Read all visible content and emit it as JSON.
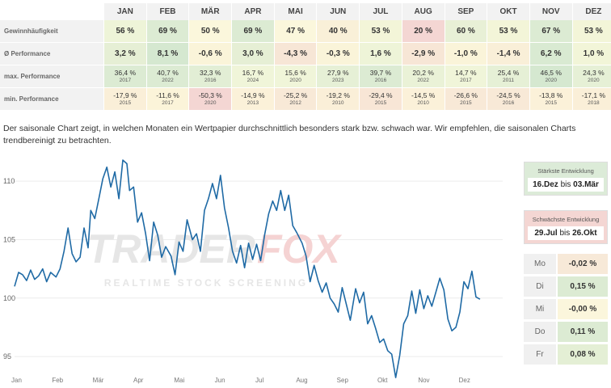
{
  "table": {
    "months": [
      "JAN",
      "FEB",
      "MÄR",
      "APR",
      "MAI",
      "JUN",
      "JUL",
      "AUG",
      "SEP",
      "OKT",
      "NOV",
      "DEZ"
    ],
    "rows": [
      {
        "label": "Gewinnhäufigkeit",
        "cells": [
          {
            "v": "56 %",
            "c": "#eef4d8"
          },
          {
            "v": "69 %",
            "c": "#dcebd3"
          },
          {
            "v": "50 %",
            "c": "#fbf7dc"
          },
          {
            "v": "69 %",
            "c": "#dcebd3"
          },
          {
            "v": "47 %",
            "c": "#fbf7dc"
          },
          {
            "v": "40 %",
            "c": "#f9f0d8"
          },
          {
            "v": "53 %",
            "c": "#f3f5d8"
          },
          {
            "v": "20 %",
            "c": "#f4d6d3"
          },
          {
            "v": "60 %",
            "c": "#e8f0d6"
          },
          {
            "v": "53 %",
            "c": "#f3f5d8"
          },
          {
            "v": "67 %",
            "c": "#dcebd3"
          },
          {
            "v": "53 %",
            "c": "#f3f5d8"
          }
        ]
      },
      {
        "label": "Ø Performance",
        "cells": [
          {
            "v": "3,2 %",
            "c": "#e6efd5"
          },
          {
            "v": "8,1 %",
            "c": "#d5e8d0"
          },
          {
            "v": "-0,6 %",
            "c": "#faf4d9"
          },
          {
            "v": "3,0 %",
            "c": "#e6efd5"
          },
          {
            "v": "-4,3 %",
            "c": "#f7e6d6"
          },
          {
            "v": "-0,3 %",
            "c": "#faf4d9"
          },
          {
            "v": "1,6 %",
            "c": "#eef4d8"
          },
          {
            "v": "-2,9 %",
            "c": "#f7e6d6"
          },
          {
            "v": "-1,0 %",
            "c": "#faf4d9"
          },
          {
            "v": "-1,4 %",
            "c": "#f9efd8"
          },
          {
            "v": "6,2 %",
            "c": "#d9ead2"
          },
          {
            "v": "1,0 %",
            "c": "#f2f5d8"
          }
        ]
      },
      {
        "label": "max. Performance",
        "cells": [
          {
            "v": "36,4 %",
            "y": "2017",
            "c": "#dcebd3"
          },
          {
            "v": "40,7 %",
            "y": "2022",
            "c": "#dcebd3"
          },
          {
            "v": "32,3 %",
            "y": "2016",
            "c": "#e2eed5"
          },
          {
            "v": "16,7 %",
            "y": "2024",
            "c": "#f0f5d9"
          },
          {
            "v": "15,6 %",
            "y": "2020",
            "c": "#f0f5d9"
          },
          {
            "v": "27,9 %",
            "y": "2023",
            "c": "#e6f0d6"
          },
          {
            "v": "39,7 %",
            "y": "2016",
            "c": "#dcebd3"
          },
          {
            "v": "20,2 %",
            "y": "2022",
            "c": "#eaf2d7"
          },
          {
            "v": "14,7 %",
            "y": "2017",
            "c": "#f0f5d9"
          },
          {
            "v": "25,4 %",
            "y": "2011",
            "c": "#e6f0d6"
          },
          {
            "v": "46,5 %",
            "y": "2020",
            "c": "#d5e8d0"
          },
          {
            "v": "24,3 %",
            "y": "2020",
            "c": "#e6f0d6"
          }
        ]
      },
      {
        "label": "min. Performance",
        "cells": [
          {
            "v": "-17,9 %",
            "y": "2015",
            "c": "#faefd8"
          },
          {
            "v": "-11,6 %",
            "y": "2017",
            "c": "#fbf4d9"
          },
          {
            "v": "-50,3 %",
            "y": "2020",
            "c": "#f4d6d3"
          },
          {
            "v": "-14,9 %",
            "y": "2013",
            "c": "#fbf1d9"
          },
          {
            "v": "-25,2 %",
            "y": "2012",
            "c": "#f8e9d7"
          },
          {
            "v": "-19,2 %",
            "y": "2010",
            "c": "#faefd8"
          },
          {
            "v": "-29,4 %",
            "y": "2015",
            "c": "#f8e6d6"
          },
          {
            "v": "-14,5 %",
            "y": "2010",
            "c": "#fbf1d9"
          },
          {
            "v": "-26,6 %",
            "y": "2015",
            "c": "#f8e9d7"
          },
          {
            "v": "-24,5 %",
            "y": "2016",
            "c": "#f8e9d7"
          },
          {
            "v": "-13,8 %",
            "y": "2015",
            "c": "#fbf1d9"
          },
          {
            "v": "-17,1 %",
            "y": "2018",
            "c": "#faefd8"
          }
        ]
      }
    ]
  },
  "description": "Der saisonale Chart zeigt, in welchen Monaten ein Wertpapier durchschnittlich besonders stark bzw. schwach war. Wir empfehlen, die saisonalen Charts trendbereinigt zu betrachten.",
  "watermark": {
    "brand_left": "TRADER",
    "brand_right": "FOX",
    "tagline": "REALTIME STOCK SCREENING"
  },
  "side": {
    "best": {
      "title": "Stärkste Entwicklung",
      "from": "16.Dez",
      "sep": "bis",
      "to": "03.Mär"
    },
    "worst": {
      "title": "Schwächste Entwicklung",
      "from": "29.Jul",
      "sep": "bis",
      "to": "26.Okt"
    },
    "weekdays": [
      {
        "name": "Mo",
        "value": "-0,02 %",
        "c": "#f7e9d8"
      },
      {
        "name": "Di",
        "value": "0,15 %",
        "c": "#dcebd3"
      },
      {
        "name": "Mi",
        "value": "-0,00 %",
        "c": "#fbf6dc"
      },
      {
        "name": "Do",
        "value": "0,11 %",
        "c": "#dcebd3"
      },
      {
        "name": "Fr",
        "value": "0,08 %",
        "c": "#e4efd5"
      }
    ]
  },
  "chart_data": {
    "type": "line",
    "x_ticks": [
      "Jan",
      "Feb",
      "Mär",
      "Apr",
      "Mai",
      "Jun",
      "Jul",
      "Aug",
      "Sep",
      "Okt",
      "Nov",
      "Dez"
    ],
    "y_ticks": [
      95,
      100,
      105,
      110
    ],
    "ylim": [
      93,
      112.5
    ],
    "line_color": "#1f6aa5",
    "series": [
      {
        "values": [
          [
            0,
            101
          ],
          [
            3,
            102.2
          ],
          [
            6,
            102
          ],
          [
            9,
            101.5
          ],
          [
            12,
            102.4
          ],
          [
            15,
            101.6
          ],
          [
            18,
            101.9
          ],
          [
            21,
            102.5
          ],
          [
            24,
            101.4
          ],
          [
            27,
            102.2
          ],
          [
            31,
            101.8
          ],
          [
            34,
            102.5
          ],
          [
            37,
            104
          ],
          [
            40,
            106
          ],
          [
            43,
            103.8
          ],
          [
            46,
            103.1
          ],
          [
            49,
            103.5
          ],
          [
            52,
            106
          ],
          [
            55,
            104.3
          ],
          [
            57,
            107.5
          ],
          [
            60,
            106.8
          ],
          [
            63,
            108.5
          ],
          [
            66,
            110.2
          ],
          [
            69,
            111.2
          ],
          [
            72,
            109.5
          ],
          [
            75,
            110.8
          ],
          [
            78,
            108.5
          ],
          [
            81,
            111.8
          ],
          [
            84,
            111.5
          ],
          [
            86,
            109.2
          ],
          [
            89,
            109.5
          ],
          [
            92,
            106.5
          ],
          [
            95,
            107.3
          ],
          [
            98,
            105.5
          ],
          [
            101,
            103.2
          ],
          [
            104,
            106.5
          ],
          [
            107,
            105.4
          ],
          [
            110,
            103.5
          ],
          [
            113,
            104.4
          ],
          [
            117,
            103.6
          ],
          [
            120,
            102
          ],
          [
            123,
            104.8
          ],
          [
            126,
            104
          ],
          [
            129,
            106.7
          ],
          [
            133,
            105
          ],
          [
            136,
            105.5
          ],
          [
            139,
            104
          ],
          [
            142,
            107.5
          ],
          [
            145,
            108.5
          ],
          [
            148,
            109.8
          ],
          [
            151,
            108.5
          ],
          [
            154,
            110.5
          ],
          [
            157,
            107.7
          ],
          [
            160,
            106
          ],
          [
            163,
            104
          ],
          [
            166,
            103
          ],
          [
            169,
            104.5
          ],
          [
            172,
            102.6
          ],
          [
            175,
            104.7
          ],
          [
            178,
            103.3
          ],
          [
            181,
            104.6
          ],
          [
            184,
            103.2
          ],
          [
            187,
            105.4
          ],
          [
            190,
            107.2
          ],
          [
            193,
            108.3
          ],
          [
            196,
            107.5
          ],
          [
            199,
            109.2
          ],
          [
            202,
            107.5
          ],
          [
            205,
            108.8
          ],
          [
            208,
            106.2
          ],
          [
            211,
            105.6
          ],
          [
            215,
            104.7
          ],
          [
            218,
            103.6
          ],
          [
            221,
            101.4
          ],
          [
            224,
            102.8
          ],
          [
            227,
            101.5
          ],
          [
            230,
            100.5
          ],
          [
            233,
            101.3
          ],
          [
            236,
            100
          ],
          [
            239,
            99.5
          ],
          [
            242,
            98.8
          ],
          [
            245,
            100.9
          ],
          [
            248,
            99.5
          ],
          [
            251,
            98.1
          ],
          [
            255,
            100.8
          ],
          [
            258,
            99.6
          ],
          [
            261,
            100.5
          ],
          [
            264,
            97.8
          ],
          [
            267,
            98.5
          ],
          [
            270,
            97.4
          ],
          [
            273,
            96.2
          ],
          [
            276,
            96.5
          ],
          [
            279,
            95.5
          ],
          [
            282,
            95.2
          ],
          [
            285,
            93.2
          ],
          [
            288,
            95.1
          ],
          [
            291,
            97.8
          ],
          [
            294,
            98.5
          ],
          [
            297,
            100.6
          ],
          [
            300,
            98.7
          ],
          [
            303,
            100.7
          ],
          [
            306,
            99.1
          ],
          [
            309,
            100.2
          ],
          [
            312,
            99.3
          ],
          [
            315,
            100.5
          ],
          [
            318,
            101.7
          ],
          [
            321,
            100.7
          ],
          [
            324,
            98.2
          ],
          [
            327,
            97.2
          ],
          [
            330,
            97.5
          ],
          [
            333,
            98.8
          ],
          [
            336,
            101.4
          ],
          [
            339,
            100.8
          ],
          [
            342,
            102.3
          ],
          [
            345,
            100.1
          ],
          [
            348,
            99.9
          ]
        ]
      }
    ]
  }
}
